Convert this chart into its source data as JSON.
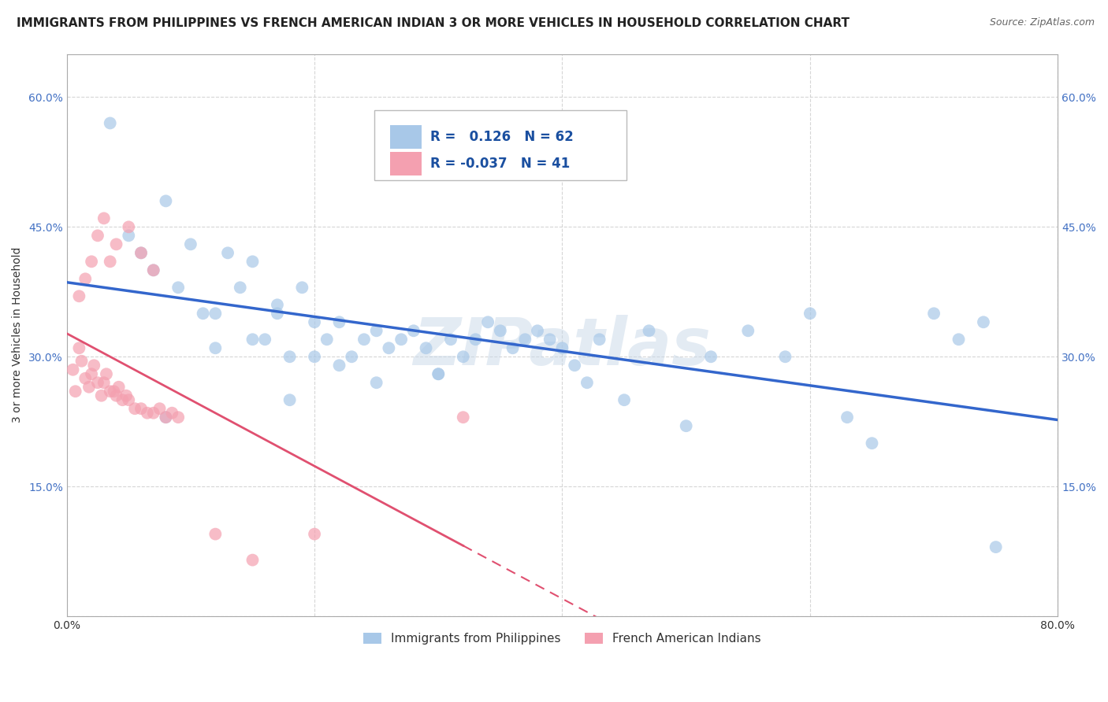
{
  "title": "IMMIGRANTS FROM PHILIPPINES VS FRENCH AMERICAN INDIAN 3 OR MORE VEHICLES IN HOUSEHOLD CORRELATION CHART",
  "source": "Source: ZipAtlas.com",
  "ylabel": "3 or more Vehicles in Household",
  "xlim": [
    0.0,
    0.8
  ],
  "ylim": [
    0.0,
    0.65
  ],
  "x_ticks": [
    0.0,
    0.2,
    0.4,
    0.6,
    0.8
  ],
  "x_tick_labels": [
    "0.0%",
    "",
    "",
    "",
    "80.0%"
  ],
  "y_ticks": [
    0.0,
    0.15,
    0.3,
    0.45,
    0.6
  ],
  "y_tick_labels": [
    "",
    "15.0%",
    "30.0%",
    "45.0%",
    "60.0%"
  ],
  "legend1_R": "0.126",
  "legend1_N": 62,
  "legend2_R": "-0.037",
  "legend2_N": 41,
  "blue_color": "#a8c8e8",
  "pink_color": "#f4a0b0",
  "blue_line_color": "#3366cc",
  "pink_line_color": "#e05070",
  "pink_line_solid_end": 0.32,
  "legend_label1": "Immigrants from Philippines",
  "legend_label2": "French American Indians",
  "blue_scatter_x": [
    0.035,
    0.05,
    0.06,
    0.07,
    0.08,
    0.09,
    0.1,
    0.11,
    0.12,
    0.13,
    0.14,
    0.15,
    0.15,
    0.16,
    0.17,
    0.18,
    0.19,
    0.2,
    0.21,
    0.22,
    0.23,
    0.24,
    0.25,
    0.26,
    0.27,
    0.28,
    0.29,
    0.3,
    0.31,
    0.32,
    0.33,
    0.34,
    0.35,
    0.36,
    0.37,
    0.38,
    0.39,
    0.4,
    0.41,
    0.42,
    0.43,
    0.45,
    0.47,
    0.5,
    0.52,
    0.55,
    0.58,
    0.6,
    0.63,
    0.65,
    0.7,
    0.72,
    0.74,
    0.75,
    0.2,
    0.17,
    0.12,
    0.08,
    0.25,
    0.3,
    0.22,
    0.18
  ],
  "blue_scatter_y": [
    0.57,
    0.44,
    0.42,
    0.4,
    0.48,
    0.38,
    0.43,
    0.35,
    0.35,
    0.42,
    0.38,
    0.41,
    0.32,
    0.32,
    0.35,
    0.3,
    0.38,
    0.34,
    0.32,
    0.34,
    0.3,
    0.32,
    0.33,
    0.31,
    0.32,
    0.33,
    0.31,
    0.28,
    0.32,
    0.3,
    0.32,
    0.34,
    0.33,
    0.31,
    0.32,
    0.33,
    0.32,
    0.31,
    0.29,
    0.27,
    0.32,
    0.25,
    0.33,
    0.22,
    0.3,
    0.33,
    0.3,
    0.35,
    0.23,
    0.2,
    0.35,
    0.32,
    0.34,
    0.08,
    0.3,
    0.36,
    0.31,
    0.23,
    0.27,
    0.28,
    0.29,
    0.25
  ],
  "pink_scatter_x": [
    0.005,
    0.007,
    0.01,
    0.012,
    0.015,
    0.018,
    0.02,
    0.022,
    0.025,
    0.028,
    0.03,
    0.032,
    0.035,
    0.038,
    0.04,
    0.042,
    0.045,
    0.048,
    0.05,
    0.055,
    0.06,
    0.065,
    0.07,
    0.075,
    0.08,
    0.085,
    0.09,
    0.01,
    0.015,
    0.02,
    0.025,
    0.03,
    0.035,
    0.04,
    0.05,
    0.06,
    0.07,
    0.12,
    0.15,
    0.2,
    0.32
  ],
  "pink_scatter_y": [
    0.285,
    0.26,
    0.31,
    0.295,
    0.275,
    0.265,
    0.28,
    0.29,
    0.27,
    0.255,
    0.27,
    0.28,
    0.26,
    0.26,
    0.255,
    0.265,
    0.25,
    0.255,
    0.25,
    0.24,
    0.24,
    0.235,
    0.235,
    0.24,
    0.23,
    0.235,
    0.23,
    0.37,
    0.39,
    0.41,
    0.44,
    0.46,
    0.41,
    0.43,
    0.45,
    0.42,
    0.4,
    0.095,
    0.065,
    0.095,
    0.23
  ],
  "background_color": "#ffffff",
  "grid_color": "#cccccc",
  "watermark": "ZIPatlas",
  "title_fontsize": 11,
  "axis_label_fontsize": 10,
  "tick_fontsize": 10,
  "legend_fontsize": 12
}
